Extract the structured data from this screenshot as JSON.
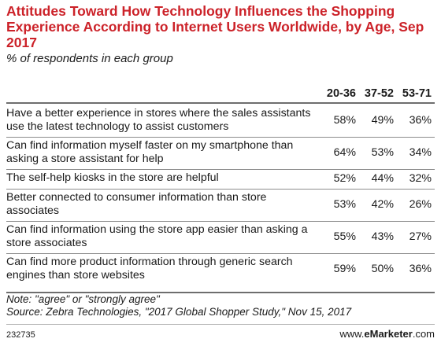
{
  "chart_data": {
    "type": "table",
    "title": "Attitudes Toward How Technology Influences the Shopping Experience According to Internet Users Worldwide, by Age, Sep 2017",
    "subtitle": "% of respondents in each group",
    "columns": [
      "20-36",
      "37-52",
      "53-71"
    ],
    "rows": [
      {
        "label": "Have a better experience in stores where the sales assistants use the latest technology to assist customers",
        "values": [
          "58%",
          "49%",
          "36%"
        ]
      },
      {
        "label": "Can find information myself faster on my smartphone than asking a store assistant for help",
        "values": [
          "64%",
          "53%",
          "34%"
        ]
      },
      {
        "label": "The self-help kiosks in the store are helpful",
        "values": [
          "52%",
          "44%",
          "32%"
        ]
      },
      {
        "label": "Better connected to consumer information than store associates",
        "values": [
          "53%",
          "42%",
          "26%"
        ]
      },
      {
        "label": "Can find information using the store app easier than asking a store associates",
        "values": [
          "55%",
          "43%",
          "27%"
        ]
      },
      {
        "label": "Can find more product information through generic search engines than store websites",
        "values": [
          "59%",
          "50%",
          "36%"
        ]
      }
    ],
    "note": "Note: \"agree\" or \"strongly agree\"",
    "source": "Source: Zebra Technologies, \"2017 Global Shopper Study,\" Nov 15, 2017"
  },
  "footer": {
    "id": "232735",
    "brand_prefix": "www.",
    "brand_name": "eMarketer",
    "brand_suffix": ".com"
  },
  "colors": {
    "title": "#cc2229",
    "text": "#1a1a1a",
    "rule": "#8c8c8c"
  }
}
